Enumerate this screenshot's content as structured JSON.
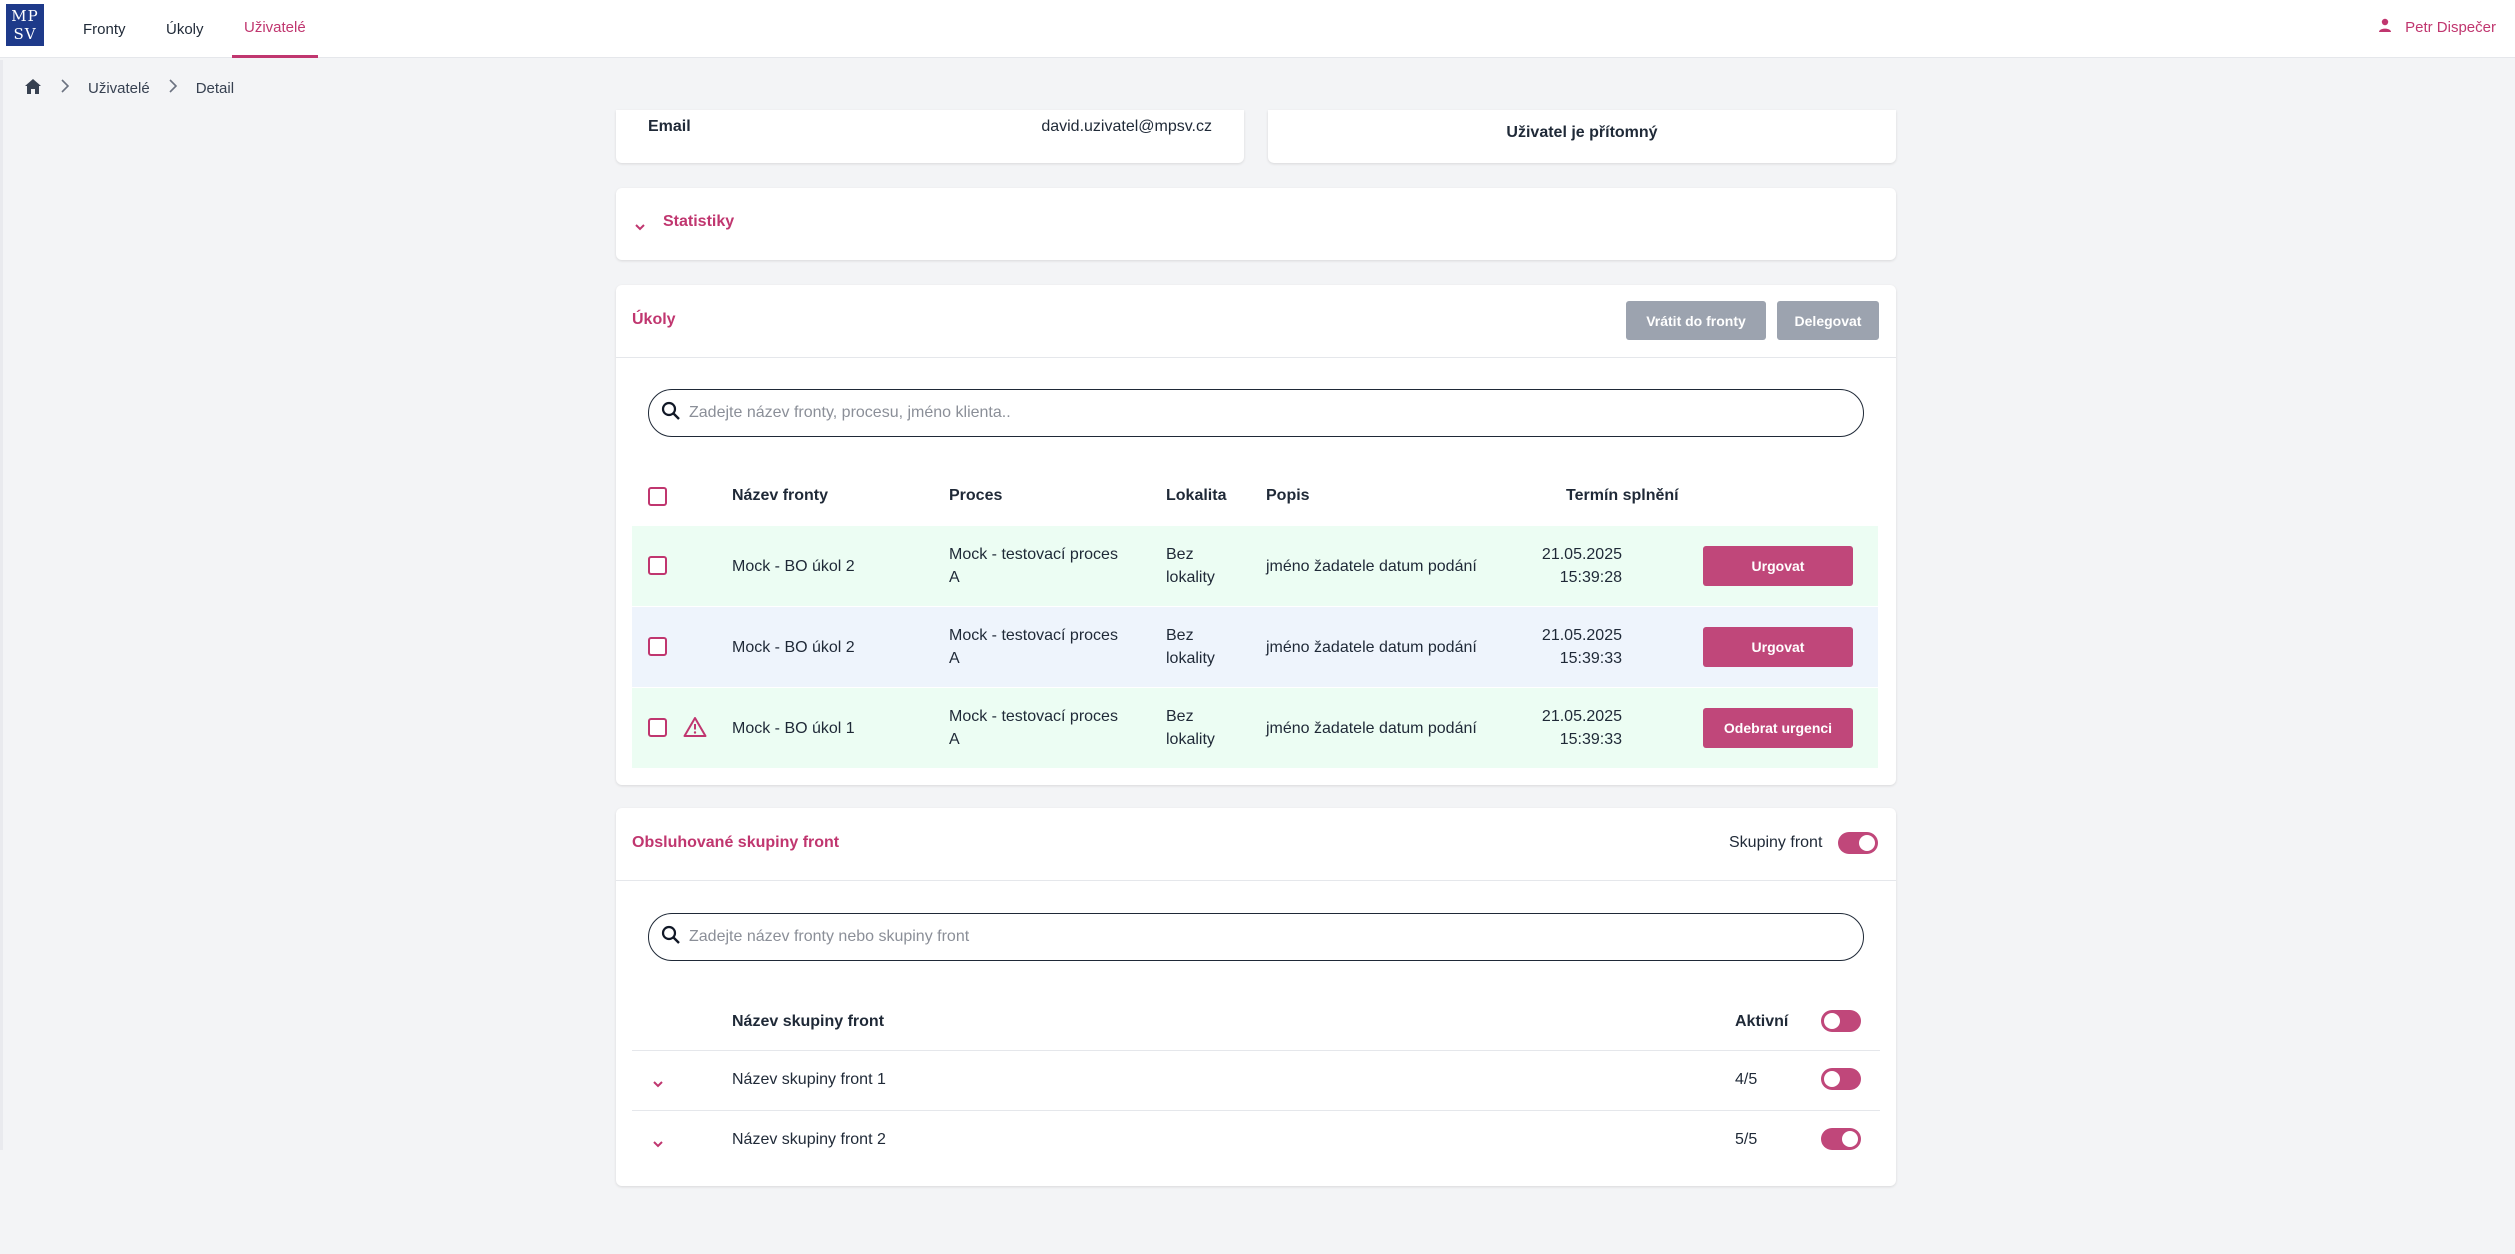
{
  "app": {
    "logo_top": "MP",
    "logo_bottom": "SV"
  },
  "nav": {
    "items": [
      {
        "label": "Fronty"
      },
      {
        "label": "Úkoly"
      },
      {
        "label": "Uživatelé"
      }
    ],
    "active": "Uživatelé",
    "user_name": "Petr Dispečer"
  },
  "breadcrumb": {
    "items": [
      "Uživatelé",
      "Detail"
    ]
  },
  "profile": {
    "email_label": "Email",
    "email_value": "david.uzivatel@mpsv.cz",
    "presence_text": "Uživatel je přítomný"
  },
  "statistics": {
    "title": "Statistiky"
  },
  "tasks": {
    "title": "Úkoly",
    "return_button": "Vrátit do fronty",
    "delegate_button": "Delegovat",
    "search_placeholder": "Zadejte název fronty, procesu, jméno klienta..",
    "columns": {
      "queue": "Název fronty",
      "process": "Proces",
      "locality": "Lokalita",
      "description": "Popis",
      "deadline": "Termín splnění"
    },
    "rows": [
      {
        "queue": "Mock - BO úkol 2",
        "process_line1": "Mock - testovací proces",
        "process_line2": "A",
        "locality_line1": "Bez",
        "locality_line2": "lokality",
        "description": "jméno žadatele datum podání",
        "date": "21.05.2025",
        "time": "15:39:28",
        "action": "Urgovat",
        "warning": false,
        "bg": "#ecfdf3"
      },
      {
        "queue": "Mock - BO úkol 2",
        "process_line1": "Mock - testovací proces",
        "process_line2": "A",
        "locality_line1": "Bez",
        "locality_line2": "lokality",
        "description": "jméno žadatele datum podání",
        "date": "21.05.2025",
        "time": "15:39:33",
        "action": "Urgovat",
        "warning": false,
        "bg": "#eef4fc"
      },
      {
        "queue": "Mock - BO úkol 1",
        "process_line1": "Mock - testovací proces",
        "process_line2": "A",
        "locality_line1": "Bez",
        "locality_line2": "lokality",
        "description": "jméno žadatele datum podání",
        "date": "21.05.2025",
        "time": "15:39:33",
        "action": "Odebrat urgenci",
        "warning": true,
        "bg": "#ecfdf3"
      }
    ]
  },
  "groups": {
    "title": "Obsluhované skupiny front",
    "toggle_label": "Skupiny front",
    "toggle_on": true,
    "search_placeholder": "Zadejte název fronty nebo skupiny front",
    "col_name": "Název skupiny front",
    "col_active": "Aktivní",
    "rows": [
      {
        "name": "Název skupiny front 1",
        "count": "4/5",
        "active": false
      },
      {
        "name": "Název skupiny front 2",
        "count": "5/5",
        "active": true
      }
    ]
  },
  "colors": {
    "accent": "#c0366f",
    "button_pink": "#c0477a",
    "button_disabled": "#9ca3af"
  }
}
